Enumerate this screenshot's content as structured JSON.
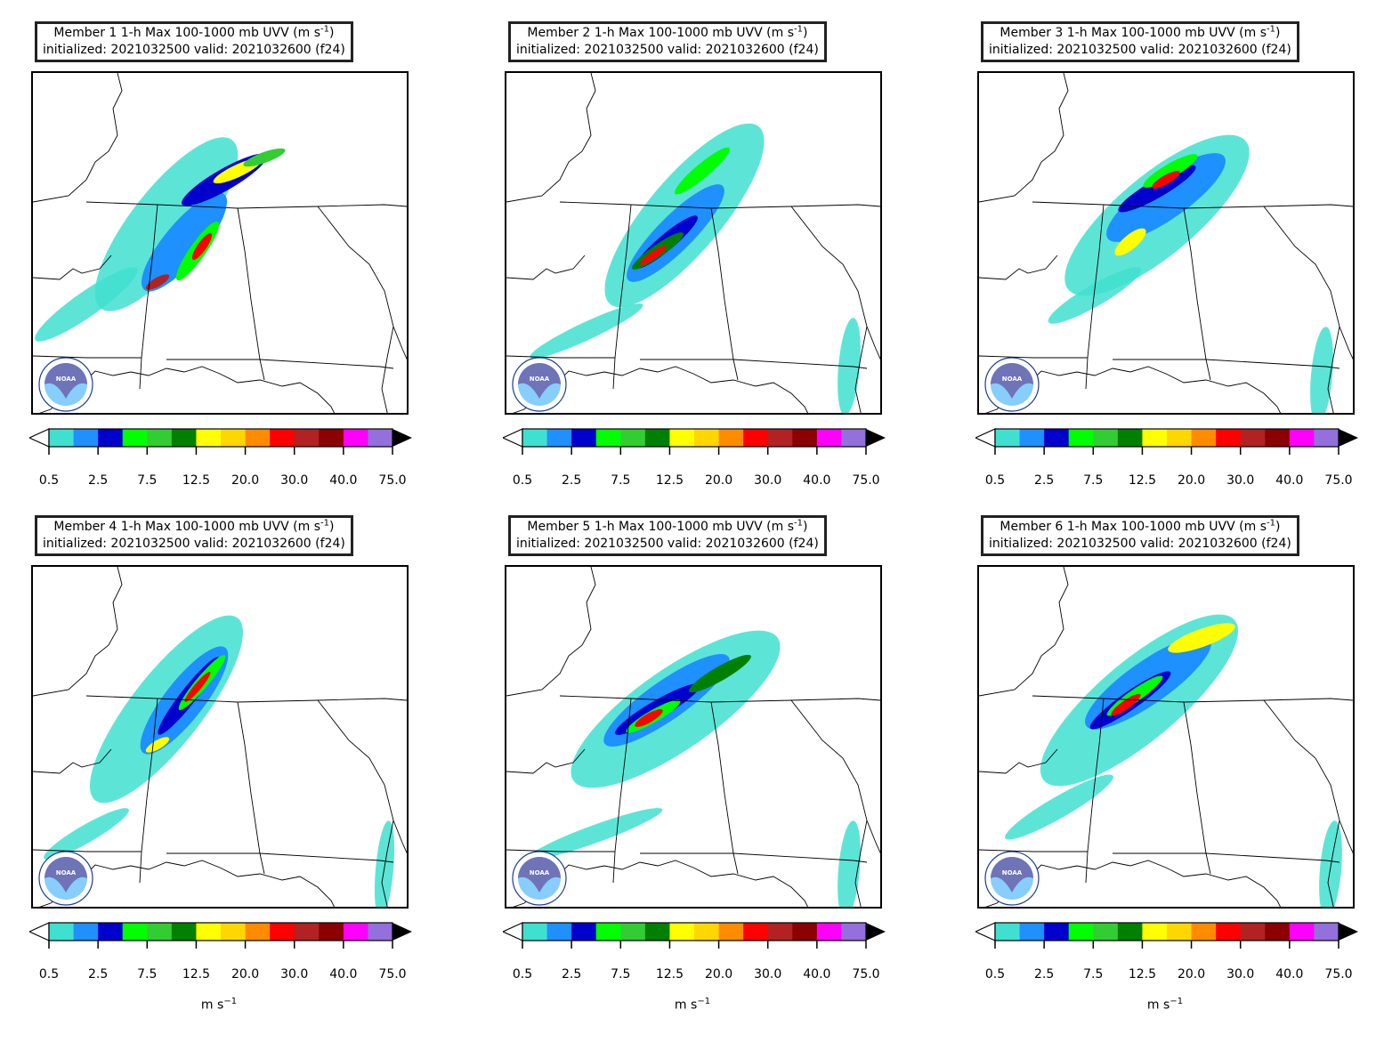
{
  "figure": {
    "title_line2": "initialized: 2021032500 valid: 2021032600 (f24)",
    "field_label": "1-h Max 100-1000 mb UVV",
    "units_base": "m s",
    "units_exp": "−1",
    "title_unit_exp": "-1",
    "logo_text": "NOAA"
  },
  "panels": [
    {
      "member": "Member 1"
    },
    {
      "member": "Member 2"
    },
    {
      "member": "Member 3"
    },
    {
      "member": "Member 4"
    },
    {
      "member": "Member 5"
    },
    {
      "member": "Member 6"
    }
  ],
  "colorbar": {
    "tick_labels": [
      "0.5",
      "2.5",
      "7.5",
      "12.5",
      "20.0",
      "30.0",
      "40.0",
      "75.0"
    ],
    "colors": [
      "#40e0d0",
      "#1e90ff",
      "#0000cd",
      "#00ff00",
      "#32cd32",
      "#008000",
      "#ffff00",
      "#ffd700",
      "#ff8c00",
      "#ff0000",
      "#b22222",
      "#8b0000",
      "#ff00ff",
      "#9370db"
    ],
    "extend": "both"
  },
  "logo_colors": {
    "ring": "#ffffff",
    "text": "#1e3c8c",
    "upper": "#6f73b8",
    "lower": "#87cefa"
  }
}
